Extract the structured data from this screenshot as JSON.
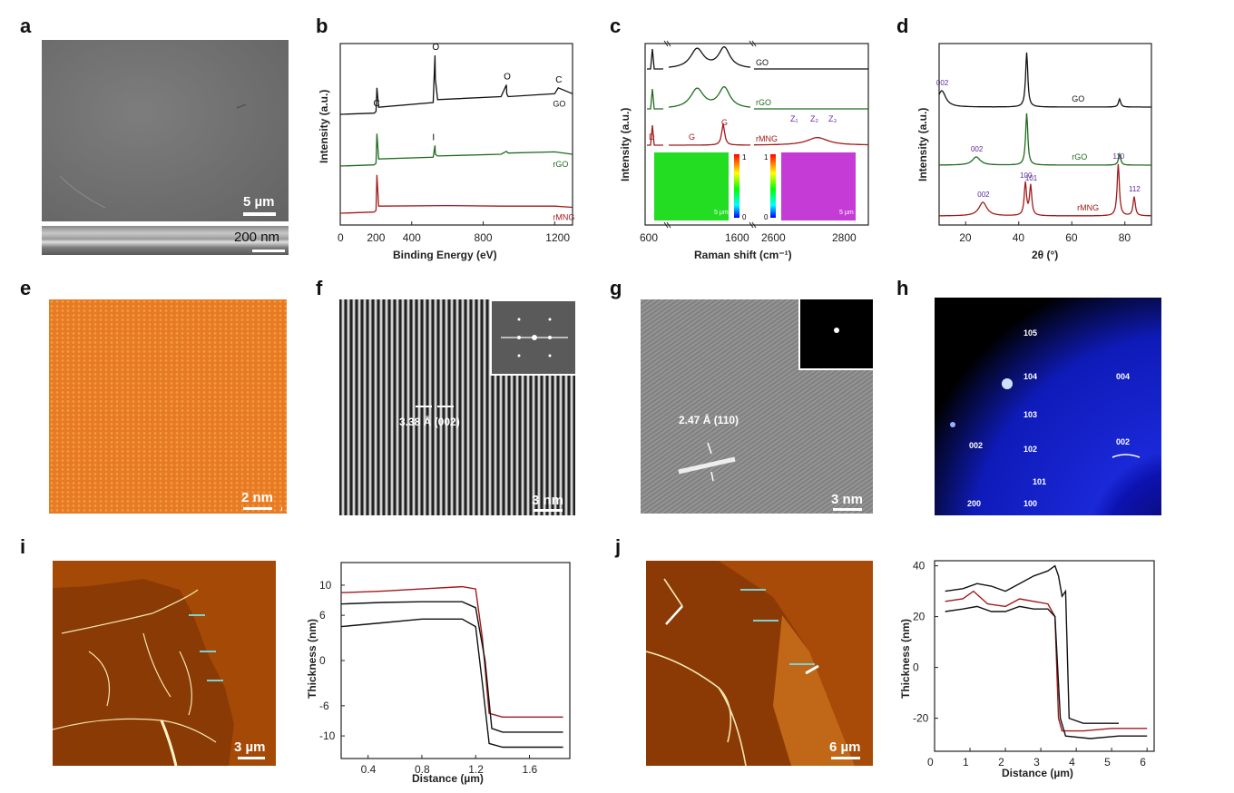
{
  "figure": {
    "panel_letters": [
      "a",
      "b",
      "c",
      "d",
      "e",
      "f",
      "g",
      "h",
      "i",
      "j"
    ],
    "a": {
      "scalebar_top": "5 µm",
      "scalebar_bottom": "200 nm"
    },
    "e": {
      "scalebar": "2 nm"
    },
    "f": {
      "scalebar": "3 nm",
      "annotation": "3.38 Å (002)"
    },
    "g": {
      "scalebar": "3 nm",
      "annotation": "2.47 Å (110)"
    },
    "h": {
      "spots": [
        "105",
        "104",
        "004",
        "103",
        "102",
        "002",
        "002",
        "101",
        "200",
        "100"
      ]
    },
    "i": {
      "scalebar": "3 µm"
    },
    "j": {
      "scalebar": "6 µm"
    }
  },
  "chart_data": [
    {
      "panel": "b",
      "type": "line",
      "xlabel": "Binding Energy (eV)",
      "ylabel": "Intensity (a.u.)",
      "xlim": [
        0,
        1300
      ],
      "xticks": [
        0,
        400,
        800,
        1200
      ],
      "xtick_labels": [
        "0",
        "400",
        "800",
        "1200"
      ],
      "extra_xtick_label": {
        "value": 200,
        "text": "200"
      },
      "series": [
        {
          "name": "GO",
          "color": "#111111",
          "offset": 2,
          "x": [
            0,
            190,
            200,
            205,
            215,
            520,
            530,
            532,
            545,
            900,
            930,
            932,
            940,
            1200,
            1220,
            1300
          ],
          "y": [
            0,
            0.02,
            0.05,
            0.45,
            0.12,
            0.2,
            1.0,
            0.6,
            0.25,
            0.3,
            0.5,
            0.35,
            0.3,
            0.35,
            0.45,
            0.35
          ]
        },
        {
          "name": "rGO",
          "color": "#1e6b1e",
          "offset": 1,
          "x": [
            0,
            190,
            200,
            205,
            215,
            520,
            530,
            532,
            545,
            900,
            930,
            940,
            1200,
            1300
          ],
          "y": [
            0,
            0.02,
            0.05,
            0.55,
            0.12,
            0.15,
            0.35,
            0.2,
            0.17,
            0.2,
            0.25,
            0.22,
            0.24,
            0.2
          ]
        },
        {
          "name": "rMNG",
          "color": "#a11a1a",
          "offset": 0,
          "x": [
            0,
            190,
            200,
            205,
            215,
            600,
            900,
            1200,
            1300
          ],
          "y": [
            0,
            0.02,
            0.05,
            0.65,
            0.12,
            0.13,
            0.12,
            0.12,
            0.1
          ]
        }
      ],
      "peak_labels": [
        {
          "x": 200,
          "series": "GO",
          "text": "C"
        },
        {
          "x": 530,
          "series": "GO",
          "text": "O"
        },
        {
          "x": 930,
          "series": "GO",
          "text": "O"
        },
        {
          "x": 1220,
          "series": "GO",
          "text": "C"
        },
        {
          "x": 530,
          "series": "rGO",
          "text": "I"
        }
      ]
    },
    {
      "panel": "c",
      "type": "line",
      "xlabel": "Raman shift (cm⁻¹)",
      "ylabel": "Intensity (a.u.)",
      "xtick_labels": [
        "600",
        "1600",
        "2600",
        "2800"
      ],
      "series": [
        {
          "name": "GO",
          "color": "#111111",
          "D": 1350,
          "G": 1590,
          "twoD": 0
        },
        {
          "name": "rGO",
          "color": "#1e6b1e",
          "D": 1350,
          "G": 1590,
          "twoD": 0
        },
        {
          "name": "rMNG",
          "color": "#a11a1a",
          "D": 0,
          "G": 1580,
          "twoD": 2700
        }
      ],
      "peak_labels": [
        "D",
        "G",
        "G",
        "Z₁",
        "Z₂",
        "Z₃"
      ],
      "inset_colorbar_ticks": [
        "1",
        "0"
      ],
      "inset_maps": [
        {
          "color": "#22dd22",
          "scalebar": "5 µm"
        },
        {
          "color": "#cc33dd",
          "scalebar": "5 µm"
        }
      ]
    },
    {
      "panel": "d",
      "type": "line",
      "xlabel": "2θ (°)",
      "ylabel": "Intensity (a.u.)",
      "xlim": [
        10,
        90
      ],
      "xticks": [
        20,
        40,
        60,
        80
      ],
      "xtick_labels": [
        "20",
        "40",
        "60",
        "80"
      ],
      "series": [
        {
          "name": "GO",
          "color": "#111111",
          "offset": 2,
          "peaks": [
            [
              11,
              0.3
            ],
            [
              43,
              1.0
            ],
            [
              78,
              0.15
            ]
          ]
        },
        {
          "name": "rGO",
          "color": "#1e6b1e",
          "offset": 1,
          "peaks": [
            [
              24,
              0.15
            ],
            [
              43,
              0.95
            ],
            [
              78,
              0.2
            ]
          ]
        },
        {
          "name": "rMNG",
          "color": "#a11a1a",
          "offset": 0,
          "peaks": [
            [
              26.5,
              0.25
            ],
            [
              42.5,
              0.6
            ],
            [
              44.5,
              0.55
            ],
            [
              77.5,
              0.95
            ],
            [
              83.5,
              0.35
            ]
          ]
        }
      ],
      "peak_labels": [
        {
          "x": 11,
          "series": "GO",
          "text": "002"
        },
        {
          "x": 24,
          "series": "rGO",
          "text": "002"
        },
        {
          "x": 26.5,
          "series": "rMNG",
          "text": "002"
        },
        {
          "x": 42.5,
          "series": "rMNG",
          "text": "100"
        },
        {
          "x": 44.5,
          "series": "rMNG",
          "text": "101"
        },
        {
          "x": 77.5,
          "series": "rMNG",
          "text": "110"
        },
        {
          "x": 83.5,
          "series": "rMNG",
          "text": "112"
        }
      ]
    },
    {
      "panel": "i",
      "type": "line",
      "xlabel": "Distance (µm)",
      "ylabel": "Thickness (nm)",
      "xlim": [
        0.2,
        1.9
      ],
      "ylim": [
        -13,
        13
      ],
      "xticks": [
        0.4,
        0.8,
        1.2,
        1.6
      ],
      "xtick_labels": [
        "0.4",
        "0.8",
        "1.2",
        "1.6"
      ],
      "yticks": [
        10,
        6,
        0,
        -6,
        -10
      ],
      "ytick_labels": [
        "10",
        "6",
        "0",
        "-6",
        "-10"
      ],
      "series": [
        {
          "color": "#a11a1a",
          "x": [
            0.2,
            0.5,
            0.8,
            1.1,
            1.2,
            1.25,
            1.3,
            1.4,
            1.6,
            1.85
          ],
          "y": [
            9,
            9.2,
            9.5,
            9.8,
            9.5,
            3,
            -7,
            -7.5,
            -7.5,
            -7.5
          ]
        },
        {
          "color": "#111111",
          "x": [
            0.2,
            0.5,
            0.8,
            1.1,
            1.2,
            1.27,
            1.32,
            1.4,
            1.6,
            1.85
          ],
          "y": [
            7.5,
            7.7,
            7.8,
            7.8,
            7,
            0,
            -9,
            -9.5,
            -9.5,
            -9.5
          ]
        },
        {
          "color": "#111111",
          "x": [
            0.2,
            0.5,
            0.8,
            1.1,
            1.2,
            1.25,
            1.3,
            1.4,
            1.6,
            1.85
          ],
          "y": [
            4.5,
            5,
            5.5,
            5.5,
            4.5,
            -3,
            -11,
            -11.5,
            -11.5,
            -11.5
          ]
        }
      ]
    },
    {
      "panel": "j",
      "type": "line",
      "xlabel": "Distance (µm)",
      "ylabel": "Thickness (nm)",
      "xlim": [
        0,
        6.2
      ],
      "ylim": [
        -33,
        42
      ],
      "xticks": [
        0,
        1,
        2,
        3,
        4,
        5,
        6
      ],
      "xtick_labels": [
        "0",
        "1",
        "2",
        "3",
        "4",
        "5",
        "6"
      ],
      "yticks": [
        40,
        20,
        0,
        -20
      ],
      "ytick_labels": [
        "40",
        "20",
        "0",
        "-20"
      ],
      "series": [
        {
          "color": "#111111",
          "x": [
            0.3,
            0.8,
            1.2,
            1.6,
            2.0,
            2.4,
            2.8,
            3.2,
            3.4,
            3.5,
            3.6,
            3.7,
            3.8,
            4.2,
            4.6,
            5.2
          ],
          "y": [
            30,
            31,
            33,
            32,
            30,
            33,
            36,
            38,
            40,
            36,
            28,
            30,
            -20,
            -22,
            -22,
            -22
          ]
        },
        {
          "color": "#a11a1a",
          "x": [
            0.3,
            0.8,
            1.1,
            1.5,
            2.0,
            2.4,
            2.8,
            3.2,
            3.4,
            3.5,
            3.6,
            4.2,
            5,
            6
          ],
          "y": [
            26,
            27,
            30,
            25,
            24,
            27,
            26,
            25,
            20,
            -20,
            -25,
            -25,
            -24,
            -24
          ]
        },
        {
          "color": "#111111",
          "x": [
            0.3,
            0.8,
            1.2,
            1.6,
            2.0,
            2.4,
            2.8,
            3.2,
            3.4,
            3.55,
            3.7,
            4.4,
            5.2,
            6
          ],
          "y": [
            22,
            23,
            24,
            22,
            22,
            24,
            23,
            23,
            20,
            -20,
            -27,
            -28,
            -27,
            -27
          ]
        }
      ]
    }
  ]
}
